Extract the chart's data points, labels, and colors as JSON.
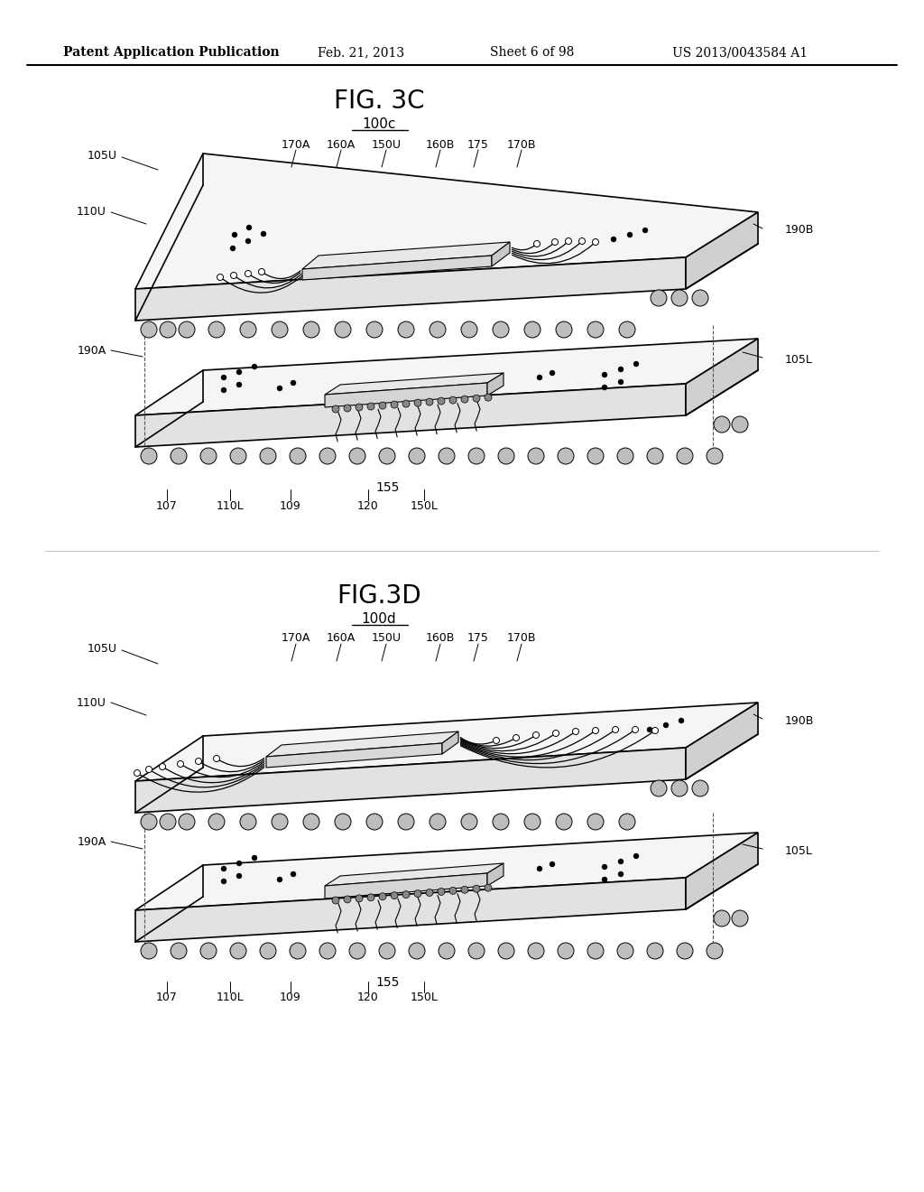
{
  "background_color": "#ffffff",
  "header_text": "Patent Application Publication",
  "header_date": "Feb. 21, 2013",
  "header_sheet": "Sheet 6 of 98",
  "header_patent": "US 2013/0043584 A1",
  "fig3c_title": "FIG. 3C",
  "fig3c_label": "100c",
  "fig3d_title": "FIG.3D",
  "fig3d_label": "100d",
  "line_color": "#000000",
  "fill_top": "#f8f8f8",
  "fill_side": "#e0e0e0",
  "fill_right": "#d0d0d0",
  "fill_chip": "#ebebeb",
  "fill_ball": "#c0c0c0"
}
